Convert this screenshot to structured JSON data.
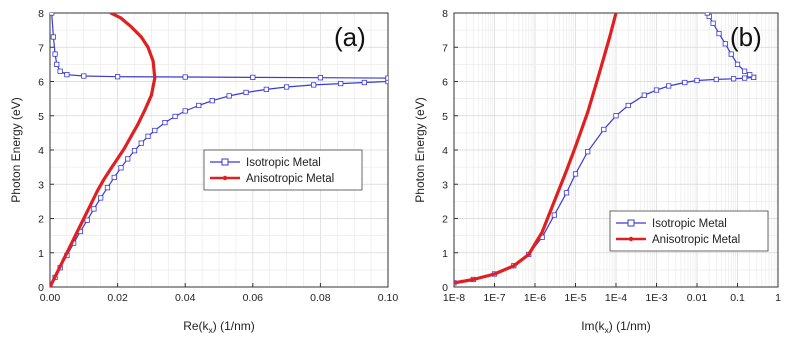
{
  "chart_data": [
    {
      "type": "line",
      "panel_label": "(a)",
      "xlabel": "Re(k",
      "xlabel_sub": "x",
      "xlabel_tail": ") (1/nm)",
      "ylabel": "Photon Energy (eV)",
      "xlim": [
        0,
        0.1
      ],
      "ylim": [
        0,
        8
      ],
      "xscale": "linear",
      "x_tick_labels": [
        "0.00",
        "0.02",
        "0.04",
        "0.06",
        "0.08",
        "0.10"
      ],
      "y_tick_labels": [
        "0",
        "1",
        "2",
        "3",
        "4",
        "5",
        "6",
        "7",
        "8"
      ],
      "grid": true,
      "legend_position": "center-right",
      "series": [
        {
          "name": "Isotropic Metal",
          "color": "#3a3ad6",
          "marker": "open-square",
          "branches": [
            {
              "x": [
                0.0,
                0.0015,
                0.003,
                0.005,
                0.007,
                0.009,
                0.011,
                0.013,
                0.015,
                0.017,
                0.019,
                0.021,
                0.023,
                0.025,
                0.027,
                0.029,
                0.031,
                0.034,
                0.037,
                0.04,
                0.044,
                0.048,
                0.053,
                0.058,
                0.064,
                0.07,
                0.078,
                0.086,
                0.093,
                0.1
              ],
              "y": [
                0.0,
                0.28,
                0.56,
                0.92,
                1.28,
                1.62,
                1.95,
                2.28,
                2.6,
                2.9,
                3.2,
                3.48,
                3.74,
                3.98,
                4.2,
                4.4,
                4.57,
                4.8,
                4.98,
                5.14,
                5.3,
                5.44,
                5.58,
                5.68,
                5.77,
                5.84,
                5.9,
                5.94,
                5.97,
                6.0
              ]
            },
            {
              "x": [
                0.0005,
                0.001,
                0.0015,
                0.002,
                0.003,
                0.005,
                0.01,
                0.02,
                0.04,
                0.06,
                0.08,
                0.1
              ],
              "y": [
                8.0,
                7.3,
                6.8,
                6.5,
                6.3,
                6.2,
                6.16,
                6.14,
                6.13,
                6.12,
                6.11,
                6.1
              ]
            }
          ]
        },
        {
          "name": "Anisotropic Metal",
          "color": "#e02020",
          "marker": "filled-dot",
          "branches": [
            {
              "x": [
                0.0,
                0.002,
                0.004,
                0.006,
                0.008,
                0.01,
                0.012,
                0.014,
                0.016,
                0.018,
                0.02,
                0.022,
                0.024,
                0.026,
                0.028,
                0.03,
                0.031,
                0.0305,
                0.029,
                0.027,
                0.024,
                0.021,
                0.018
              ],
              "y": [
                0.0,
                0.4,
                0.8,
                1.2,
                1.6,
                2.0,
                2.4,
                2.8,
                3.15,
                3.45,
                3.75,
                4.05,
                4.4,
                4.75,
                5.15,
                5.6,
                6.1,
                6.6,
                7.0,
                7.3,
                7.6,
                7.85,
                8.0
              ]
            }
          ]
        }
      ]
    },
    {
      "type": "line",
      "panel_label": "(b)",
      "xlabel": "Im(k",
      "xlabel_sub": "x",
      "xlabel_tail": ") (1/nm)",
      "ylabel": "Photon Energy (eV)",
      "xlim": [
        1e-08,
        1
      ],
      "ylim": [
        0,
        8
      ],
      "xscale": "log",
      "x_tick_labels": [
        "1E-8",
        "1E-7",
        "1E-6",
        "1E-5",
        "1E-4",
        "1E-3",
        "0.01",
        "0.1",
        "1"
      ],
      "y_tick_labels": [
        "0",
        "1",
        "2",
        "3",
        "4",
        "5",
        "6",
        "7",
        "8"
      ],
      "grid": true,
      "legend_position": "bottom-right",
      "series": [
        {
          "name": "Isotropic Metal",
          "color": "#3a3ad6",
          "marker": "open-square",
          "branches": [
            {
              "x": [
                1e-08,
                3e-08,
                1e-07,
                3e-07,
                7e-07,
                1.5e-06,
                3e-06,
                6e-06,
                1e-05,
                2e-05,
                5e-05,
                0.0001,
                0.0002,
                0.0005,
                0.001,
                0.002,
                0.005,
                0.01,
                0.03,
                0.08,
                0.15,
                0.25
              ],
              "y": [
                0.12,
                0.22,
                0.38,
                0.62,
                0.95,
                1.45,
                2.1,
                2.75,
                3.3,
                3.95,
                4.6,
                5.0,
                5.3,
                5.6,
                5.75,
                5.87,
                5.97,
                6.03,
                6.06,
                6.08,
                6.1,
                6.12
              ]
            },
            {
              "x": [
                0.25,
                0.2,
                0.15,
                0.1,
                0.07,
                0.05,
                0.035,
                0.025,
                0.02,
                0.018
              ],
              "y": [
                6.12,
                6.2,
                6.3,
                6.5,
                6.8,
                7.1,
                7.4,
                7.7,
                7.9,
                8.0
              ]
            }
          ]
        },
        {
          "name": "Anisotropic Metal",
          "color": "#e02020",
          "marker": "filled-dot",
          "branches": [
            {
              "x": [
                1e-08,
                3e-08,
                1e-07,
                3e-07,
                7e-07,
                1.5e-06,
                3e-06,
                6e-06,
                1e-05,
                2e-05,
                4e-05,
                7e-05,
                0.0001
              ],
              "y": [
                0.12,
                0.22,
                0.38,
                0.62,
                0.95,
                1.6,
                2.5,
                3.4,
                4.1,
                5.1,
                6.3,
                7.3,
                8.0
              ]
            }
          ]
        }
      ]
    }
  ]
}
